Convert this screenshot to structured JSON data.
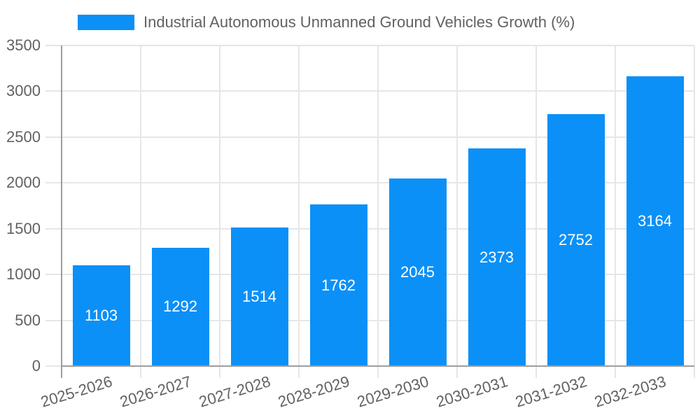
{
  "chart_data": {
    "type": "bar",
    "title": "",
    "legend": {
      "label": "Industrial Autonomous Unmanned Ground Vehicles Growth (%)",
      "position": "top-left"
    },
    "categories": [
      "2025-2026",
      "2026-2027",
      "2027-2028",
      "2028-2029",
      "2029-2030",
      "2030-2031",
      "2031-2032",
      "2032-2033"
    ],
    "series": [
      {
        "name": "Industrial Autonomous Unmanned Ground Vehicles Growth (%)",
        "values": [
          1103,
          1292,
          1514,
          1762,
          2045,
          2373,
          2752,
          3164
        ]
      }
    ],
    "bar_value_labels": [
      "1103",
      "1292",
      "1514",
      "1762",
      "2045",
      "2373",
      "2752",
      "3164"
    ],
    "xlabel": "",
    "ylabel": "",
    "ylim": [
      0,
      3500
    ],
    "ytick_labels": [
      "0",
      "500",
      "1000",
      "1500",
      "2000",
      "2500",
      "3000",
      "3500"
    ],
    "grid": true,
    "colors": {
      "bar": "#0b90f7",
      "grid": "#e6e6e6",
      "axis": "#9e9e9e",
      "text": "#616161",
      "value_label": "#ffffff"
    }
  }
}
